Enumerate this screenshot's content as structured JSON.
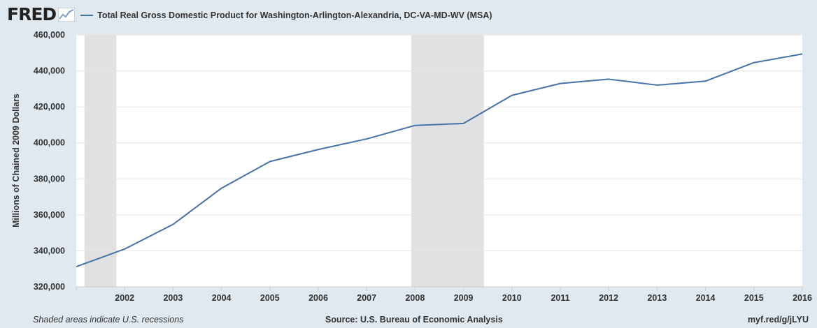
{
  "header": {
    "logo": "FRED",
    "legend_label": "Total Real Gross Domestic Product for Washington-Arlington-Alexandria, DC-VA-MD-WV (MSA)"
  },
  "footer": {
    "left": "Shaded areas indicate U.S. recessions",
    "center": "Source: U.S. Bureau of Economic Analysis",
    "right": "myf.red/g/jLYU"
  },
  "colors": {
    "line": "#4572a7",
    "recession": "#e1e1e1",
    "background": "#e1e9f0",
    "plot": "#ffffff"
  },
  "chart_data": {
    "type": "line",
    "title": "",
    "xlabel": "",
    "ylabel": "Millions of Chained 2009 Dollars",
    "ylim": [
      320000,
      460000
    ],
    "xlim": [
      2001,
      2016
    ],
    "grid": true,
    "legend_position": "top-left",
    "y_ticks": [
      320000,
      340000,
      360000,
      380000,
      400000,
      420000,
      440000,
      460000
    ],
    "y_tick_labels": [
      "320,000",
      "340,000",
      "360,000",
      "380,000",
      "400,000",
      "420,000",
      "440,000",
      "460,000"
    ],
    "x_ticks": [
      2002,
      2003,
      2004,
      2005,
      2006,
      2007,
      2008,
      2009,
      2010,
      2011,
      2012,
      2013,
      2014,
      2015,
      2016
    ],
    "x_tick_labels": [
      "2002",
      "2003",
      "2004",
      "2005",
      "2006",
      "2007",
      "2008",
      "2009",
      "2010",
      "2011",
      "2012",
      "2013",
      "2014",
      "2015",
      "2016"
    ],
    "recessions": [
      {
        "start": 2001.17,
        "end": 2001.83
      },
      {
        "start": 2007.92,
        "end": 2009.42
      }
    ],
    "series": [
      {
        "name": "Total Real Gross Domestic Product for Washington-Arlington-Alexandria, DC-VA-MD-WV (MSA)",
        "x": [
          2001,
          2002,
          2003,
          2004,
          2005,
          2006,
          2007,
          2008,
          2009,
          2010,
          2011,
          2012,
          2013,
          2014,
          2015,
          2016
        ],
        "values": [
          331200,
          341000,
          354700,
          374800,
          389600,
          396300,
          402200,
          409700,
          410800,
          426400,
          433000,
          435400,
          432100,
          434300,
          444600,
          449400
        ]
      }
    ]
  }
}
